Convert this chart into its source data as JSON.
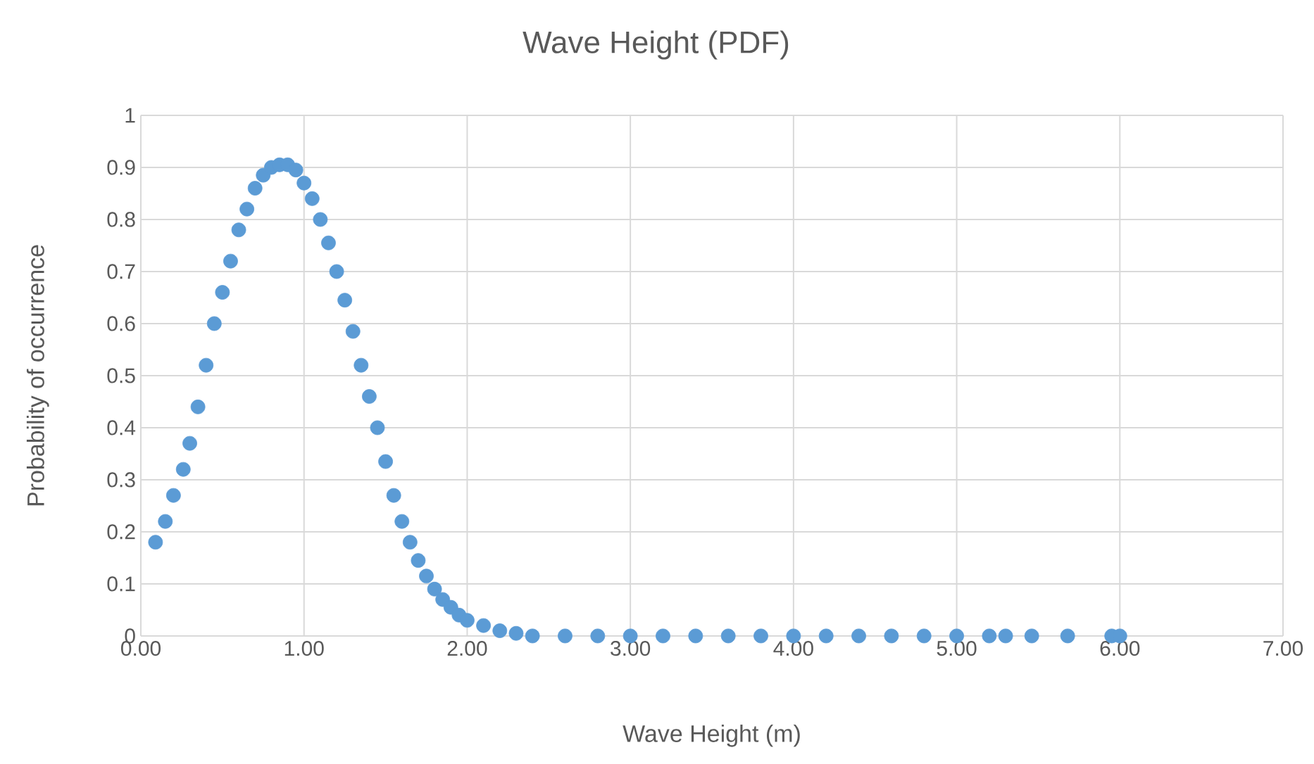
{
  "chart_data": {
    "type": "scatter",
    "title": "Wave Height (PDF)",
    "xlabel": "Wave Height (m)",
    "ylabel": "Probability of occurrence",
    "x": [
      0.09,
      0.15,
      0.2,
      0.26,
      0.3,
      0.35,
      0.4,
      0.45,
      0.5,
      0.55,
      0.6,
      0.65,
      0.7,
      0.75,
      0.8,
      0.85,
      0.9,
      0.95,
      1.0,
      1.05,
      1.1,
      1.15,
      1.2,
      1.25,
      1.3,
      1.35,
      1.4,
      1.45,
      1.5,
      1.55,
      1.6,
      1.65,
      1.7,
      1.75,
      1.8,
      1.85,
      1.9,
      1.95,
      2.0,
      2.1,
      2.2,
      2.3,
      2.4,
      2.6,
      2.8,
      3.0,
      3.2,
      3.4,
      3.6,
      3.8,
      4.0,
      4.2,
      4.4,
      4.6,
      4.8,
      5.0,
      5.2,
      5.3,
      5.46,
      5.68,
      5.95,
      6.0
    ],
    "values": [
      0.18,
      0.22,
      0.27,
      0.32,
      0.37,
      0.44,
      0.52,
      0.6,
      0.66,
      0.72,
      0.78,
      0.82,
      0.86,
      0.885,
      0.9,
      0.905,
      0.905,
      0.895,
      0.87,
      0.84,
      0.8,
      0.755,
      0.7,
      0.645,
      0.585,
      0.52,
      0.46,
      0.4,
      0.335,
      0.27,
      0.22,
      0.18,
      0.145,
      0.115,
      0.09,
      0.07,
      0.055,
      0.04,
      0.03,
      0.02,
      0.01,
      0.005,
      0,
      0,
      0,
      0,
      0,
      0,
      0,
      0,
      0,
      0,
      0,
      0,
      0,
      0,
      0,
      0,
      0,
      0,
      0,
      0
    ],
    "color": "#5b9bd5",
    "marker": "circle",
    "grid": true,
    "xlim": [
      0,
      7
    ],
    "xticks": [
      {
        "value": 0,
        "label": "0.00"
      },
      {
        "value": 1,
        "label": "1.00"
      },
      {
        "value": 2,
        "label": "2.00"
      },
      {
        "value": 3,
        "label": "3.00"
      },
      {
        "value": 4,
        "label": "4.00"
      },
      {
        "value": 5,
        "label": "5.00"
      },
      {
        "value": 6,
        "label": "6.00"
      },
      {
        "value": 7,
        "label": "7.00"
      }
    ],
    "ylim": [
      0,
      1
    ],
    "yticks": [
      0,
      0.1,
      0.2,
      0.3,
      0.4,
      0.5,
      0.6,
      0.7,
      0.8,
      0.9,
      1
    ]
  }
}
